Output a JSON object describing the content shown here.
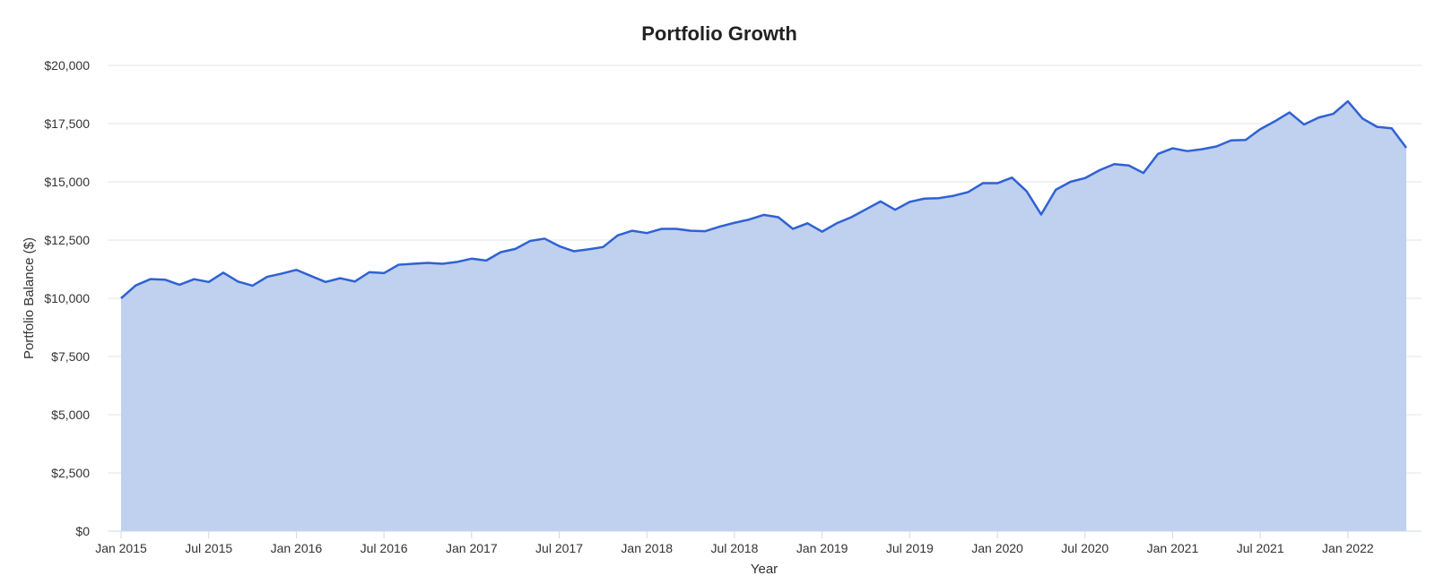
{
  "chart_data": {
    "type": "area",
    "title": "Portfolio Growth",
    "xlabel": "Year",
    "ylabel": "Portfolio Balance ($)",
    "ylim": [
      0,
      20000
    ],
    "y_ticks": [
      "$0",
      "$2,500",
      "$5,000",
      "$7,500",
      "$10,000",
      "$12,500",
      "$15,000",
      "$17,500",
      "$20,000"
    ],
    "x_ticks": [
      "Jan 2015",
      "Jul 2015",
      "Jan 2016",
      "Jul 2016",
      "Jan 2017",
      "Jul 2017",
      "Jan 2018",
      "Jul 2018",
      "Jan 2019",
      "Jul 2019",
      "Jan 2020",
      "Jul 2020",
      "Jan 2021",
      "Jul 2021",
      "Jan 2022"
    ],
    "grid": true,
    "colors": {
      "line": "#2f62d2",
      "fill": "#c0d0ef"
    },
    "x": [
      "2015-01",
      "2015-02",
      "2015-03",
      "2015-04",
      "2015-05",
      "2015-06",
      "2015-07",
      "2015-08",
      "2015-09",
      "2015-10",
      "2015-11",
      "2015-12",
      "2016-01",
      "2016-02",
      "2016-03",
      "2016-04",
      "2016-05",
      "2016-06",
      "2016-07",
      "2016-08",
      "2016-09",
      "2016-10",
      "2016-11",
      "2016-12",
      "2017-01",
      "2017-02",
      "2017-03",
      "2017-04",
      "2017-05",
      "2017-06",
      "2017-07",
      "2017-08",
      "2017-09",
      "2017-10",
      "2017-11",
      "2017-12",
      "2018-01",
      "2018-02",
      "2018-03",
      "2018-04",
      "2018-05",
      "2018-06",
      "2018-07",
      "2018-08",
      "2018-09",
      "2018-10",
      "2018-11",
      "2018-12",
      "2019-01",
      "2019-02",
      "2019-03",
      "2019-04",
      "2019-05",
      "2019-06",
      "2019-07",
      "2019-08",
      "2019-09",
      "2019-10",
      "2019-11",
      "2019-12",
      "2020-01",
      "2020-02",
      "2020-03",
      "2020-04",
      "2020-05",
      "2020-06",
      "2020-07",
      "2020-08",
      "2020-09",
      "2020-10",
      "2020-11",
      "2020-12",
      "2021-01",
      "2021-02",
      "2021-03",
      "2021-04",
      "2021-05",
      "2021-06",
      "2021-07",
      "2021-08",
      "2021-09",
      "2021-10",
      "2021-11",
      "2021-12",
      "2022-01",
      "2022-02",
      "2022-03",
      "2022-04",
      "2022-05"
    ],
    "series": [
      {
        "values": [
          10000,
          10550,
          10820,
          10800,
          10580,
          10820,
          10700,
          11100,
          10720,
          10540,
          10920,
          11060,
          11220,
          10960,
          10700,
          10860,
          10720,
          11120,
          11080,
          11440,
          11480,
          11520,
          11480,
          11560,
          11700,
          11620,
          11980,
          12120,
          12460,
          12560,
          12240,
          12020,
          12100,
          12200,
          12700,
          12900,
          12800,
          12980,
          12980,
          12900,
          12880,
          13080,
          13240,
          13380,
          13580,
          13480,
          12980,
          13220,
          12860,
          13220,
          13480,
          13820,
          14160,
          13800,
          14140,
          14280,
          14300,
          14400,
          14560,
          14940,
          14940,
          15180,
          14600,
          13600,
          14660,
          15000,
          15160,
          15500,
          15760,
          15700,
          15380,
          16200,
          16440,
          16320,
          16400,
          16520,
          16780,
          16800,
          17260,
          17600,
          17980,
          17460,
          17760,
          17920,
          18460,
          17720,
          17360,
          17300,
          16460
        ]
      }
    ]
  }
}
